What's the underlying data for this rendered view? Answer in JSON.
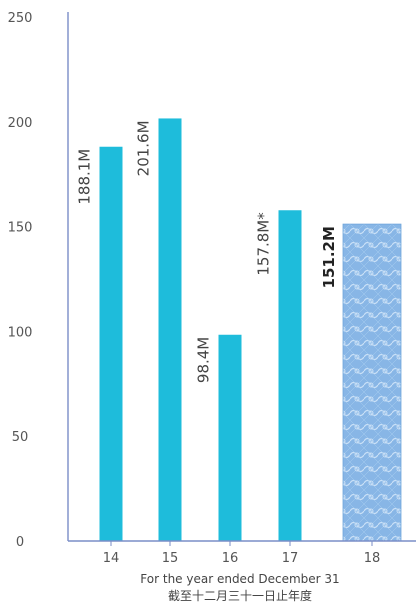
{
  "chart_data": {
    "type": "bar",
    "categories": [
      "14",
      "15",
      "16",
      "17",
      "18"
    ],
    "values": [
      188.1,
      201.6,
      98.4,
      157.8,
      151.2
    ],
    "data_labels": [
      "188.1M",
      "201.6M",
      "98.4M",
      "157.8M*",
      "151.2M"
    ],
    "highlight_index": 4,
    "ylim": [
      0,
      250
    ],
    "yticks": [
      "0",
      "50",
      "100",
      "150",
      "200",
      "250"
    ],
    "xlabel": "For the year ended December 31",
    "xlabel_zh": "截至十二月三十一日止年度",
    "grid": false,
    "colors": {
      "bar": "#1EBCDB",
      "highlight_bar": "#7FB3E3",
      "axis": "#7A8DC7"
    }
  }
}
